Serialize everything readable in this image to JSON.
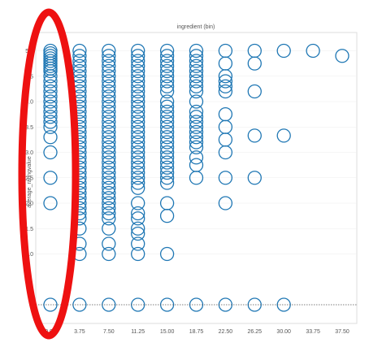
{
  "chart_data": {
    "type": "scatter",
    "title": "ingredient (bin)",
    "xlabel": "",
    "ylabel": "average_ratingvalue",
    "x_ticks": [
      "0.00",
      "3.75",
      "7.50",
      "11.25",
      "15.00",
      "18.75",
      "22.50",
      "26.25",
      "30.00",
      "33.75",
      "37.50"
    ],
    "y_ticks": [
      "1.0",
      "1.5",
      "2.0",
      "2.5",
      "3.0",
      "3.5",
      "4.0",
      "4.5",
      "5.0"
    ],
    "ylim": [
      0,
      5.2
    ],
    "reference_line_y": 0,
    "marker": "open-circle",
    "series": [
      {
        "values": [
          {
            "x": "0.00",
            "y": [
              5.0,
              4.95,
              4.9,
              4.85,
              4.8,
              4.75,
              4.7,
              4.65,
              4.6,
              4.5,
              4.4,
              4.3,
              4.2,
              4.1,
              4.0,
              3.9,
              3.8,
              3.7,
              3.6,
              3.5,
              3.3,
              3.0,
              2.5,
              2.0,
              0
            ]
          },
          {
            "x": "3.75",
            "y": [
              5.0,
              4.9,
              4.8,
              4.7,
              4.6,
              4.5,
              4.4,
              4.3,
              4.2,
              4.1,
              4.0,
              3.9,
              3.8,
              3.7,
              3.6,
              3.5,
              3.4,
              3.3,
              3.2,
              3.1,
              3.0,
              2.9,
              2.8,
              2.7,
              2.6,
              2.5,
              2.4,
              2.3,
              2.2,
              2.1,
              2.0,
              1.9,
              1.8,
              1.7,
              1.5,
              1.2,
              1.0,
              0
            ]
          },
          {
            "x": "7.50",
            "y": [
              5.0,
              4.9,
              4.8,
              4.7,
              4.6,
              4.5,
              4.4,
              4.3,
              4.2,
              4.1,
              4.0,
              3.9,
              3.8,
              3.7,
              3.6,
              3.5,
              3.4,
              3.3,
              3.2,
              3.1,
              3.0,
              2.9,
              2.8,
              2.7,
              2.6,
              2.5,
              2.4,
              2.3,
              2.2,
              2.1,
              2.0,
              1.9,
              1.8,
              1.7,
              1.5,
              1.2,
              1.0,
              0
            ]
          },
          {
            "x": "11.25",
            "y": [
              5.0,
              4.9,
              4.8,
              4.7,
              4.6,
              4.5,
              4.4,
              4.3,
              4.2,
              4.1,
              4.0,
              3.9,
              3.8,
              3.7,
              3.6,
              3.5,
              3.4,
              3.3,
              3.2,
              3.1,
              3.0,
              2.9,
              2.8,
              2.7,
              2.6,
              2.5,
              2.4,
              2.3,
              2.0,
              1.8,
              1.7,
              1.5,
              1.4,
              1.2,
              1.0,
              0
            ]
          },
          {
            "x": "15.00",
            "y": [
              5.0,
              4.9,
              4.8,
              4.7,
              4.6,
              4.5,
              4.4,
              4.3,
              4.2,
              4.0,
              3.9,
              3.8,
              3.7,
              3.6,
              3.5,
              3.4,
              3.3,
              3.2,
              3.1,
              3.0,
              2.9,
              2.8,
              2.7,
              2.6,
              2.5,
              2.4,
              2.0,
              1.75,
              1.0,
              0
            ]
          },
          {
            "x": "18.75",
            "y": [
              5.0,
              4.9,
              4.8,
              4.7,
              4.6,
              4.5,
              4.4,
              4.3,
              4.2,
              4.0,
              3.8,
              3.7,
              3.6,
              3.5,
              3.4,
              3.3,
              3.2,
              3.1,
              2.9,
              2.75,
              2.5,
              0
            ]
          },
          {
            "x": "22.50",
            "y": [
              5.0,
              4.75,
              4.5,
              4.4,
              4.3,
              4.2,
              3.75,
              3.5,
              3.25,
              3.0,
              2.5,
              2.0,
              0
            ]
          },
          {
            "x": "26.25",
            "y": [
              5.0,
              4.75,
              4.2,
              3.33,
              2.5,
              0
            ]
          },
          {
            "x": "30.00",
            "y": [
              5.0,
              3.33,
              0
            ]
          },
          {
            "x": "33.75",
            "y": [
              5.0
            ]
          },
          {
            "x": "37.50",
            "y": [
              4.9
            ]
          }
        ]
      }
    ],
    "colors": {
      "marker_stroke": "#1f77b4",
      "grid": "#eeeeee",
      "reference_line": "#555555",
      "annotation": "#ee1111"
    }
  }
}
